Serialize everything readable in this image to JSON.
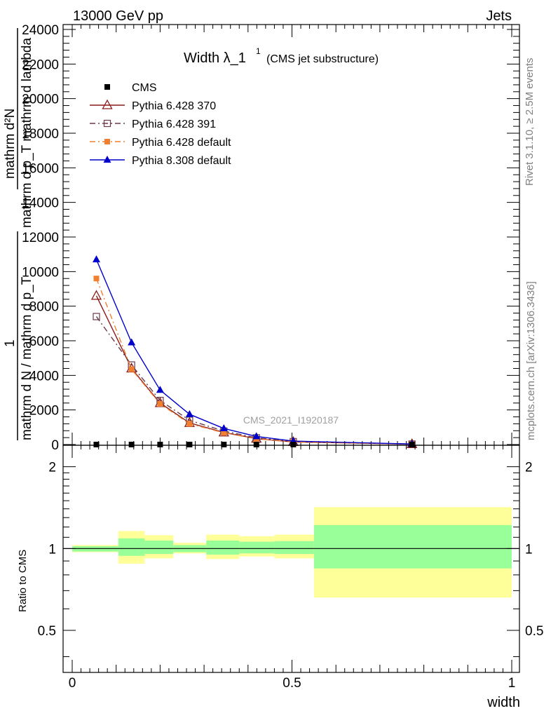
{
  "header": {
    "beam": "13000 GeV pp",
    "process": "Jets"
  },
  "title": {
    "main": "Width λ_1",
    "superscript": "1",
    "sub": "(CMS jet substructure)"
  },
  "side_labels": {
    "rivet": "Rivet 3.1.10, ≥ 2.5M events",
    "mcplots": "mcplots.cern.ch [arXiv:1306.3436]"
  },
  "watermark": "CMS_2021_I1920187",
  "y_axis_label_lines": [
    "mathrm d²N",
    "mathrm d p_T mathrm d lambda",
    "1",
    "mathrm d N / mathrm d p_T"
  ],
  "ratio_ylabel": "Ratio to CMS",
  "xlabel": "width",
  "colors": {
    "cms": "#000000",
    "p370": "#8b1a1a",
    "p391": "#6b3a4a",
    "pdefault": "#f08030",
    "p8": "#0000cc",
    "band_inner": "#99ff99",
    "band_outer": "#ffff99"
  },
  "chart_data": [
    {
      "type": "line",
      "name": "main",
      "xlim": [
        0,
        1
      ],
      "ylim": [
        0,
        24000
      ],
      "y_ticks": [
        0,
        2000,
        4000,
        6000,
        8000,
        10000,
        12000,
        14000,
        16000,
        18000,
        20000,
        22000,
        24000
      ],
      "y_tick_labels": [
        "0",
        "2000",
        "4000",
        "6000",
        "8000",
        "10000",
        "12000",
        "14000",
        "16000",
        "18000",
        "20000",
        "22000",
        "24000"
      ],
      "x_ticks": [
        0,
        0.5,
        1
      ],
      "x_tick_labels": [
        "0",
        "0.5",
        "1"
      ],
      "x": [
        0.055,
        0.135,
        0.2,
        0.267,
        0.345,
        0.419,
        0.503,
        0.773
      ],
      "series": [
        {
          "name": "CMS",
          "marker": "square",
          "values": [
            0,
            0,
            0,
            0,
            0,
            0,
            0,
            0
          ]
        },
        {
          "name": "Pythia 6.428 370",
          "marker": "triangle-open",
          "dash": "solid",
          "values": [
            8600,
            4400,
            2400,
            1250,
            700,
            340,
            150,
            25
          ]
        },
        {
          "name": "Pythia 6.428 391",
          "marker": "square-open",
          "dash": "dashdot",
          "values": [
            7400,
            4600,
            2550,
            1400,
            780,
            390,
            170,
            28
          ]
        },
        {
          "name": "Pythia 6.428 default",
          "marker": "square",
          "dash": "dashdot-orange",
          "values": [
            9600,
            4350,
            2350,
            1200,
            680,
            330,
            140,
            22
          ]
        },
        {
          "name": "Pythia 8.308 default",
          "marker": "triangle",
          "dash": "solid",
          "values": [
            10700,
            5900,
            3150,
            1750,
            930,
            470,
            200,
            30
          ]
        }
      ],
      "legend_position": "top-left"
    },
    {
      "type": "area",
      "name": "ratio",
      "ylabel": "Ratio to CMS",
      "xlabel": "width",
      "xlim": [
        0,
        1
      ],
      "ylog": true,
      "ylim": [
        0.35,
        2.4
      ],
      "y_ticks": [
        0.5,
        1,
        2
      ],
      "y_tick_labels": [
        "0.5",
        "1",
        "2"
      ],
      "bins": [
        {
          "lo": 0.0,
          "hi": 0.105,
          "inner": [
            0.975,
            1.02
          ],
          "outer": [
            0.97,
            1.03
          ]
        },
        {
          "lo": 0.105,
          "hi": 0.165,
          "inner": [
            0.94,
            1.09
          ],
          "outer": [
            0.88,
            1.16
          ]
        },
        {
          "lo": 0.165,
          "hi": 0.23,
          "inner": [
            0.955,
            1.07
          ],
          "outer": [
            0.92,
            1.12
          ]
        },
        {
          "lo": 0.23,
          "hi": 0.305,
          "inner": [
            0.97,
            1.03
          ],
          "outer": [
            0.96,
            1.05
          ]
        },
        {
          "lo": 0.305,
          "hi": 0.38,
          "inner": [
            0.95,
            1.07
          ],
          "outer": [
            0.915,
            1.125
          ]
        },
        {
          "lo": 0.38,
          "hi": 0.46,
          "inner": [
            0.96,
            1.06
          ],
          "outer": [
            0.935,
            1.11
          ]
        },
        {
          "lo": 0.46,
          "hi": 0.55,
          "inner": [
            0.955,
            1.065
          ],
          "outer": [
            0.92,
            1.125
          ]
        },
        {
          "lo": 0.55,
          "hi": 1.0,
          "inner": [
            0.845,
            1.22
          ],
          "outer": [
            0.66,
            1.42
          ]
        }
      ]
    }
  ]
}
